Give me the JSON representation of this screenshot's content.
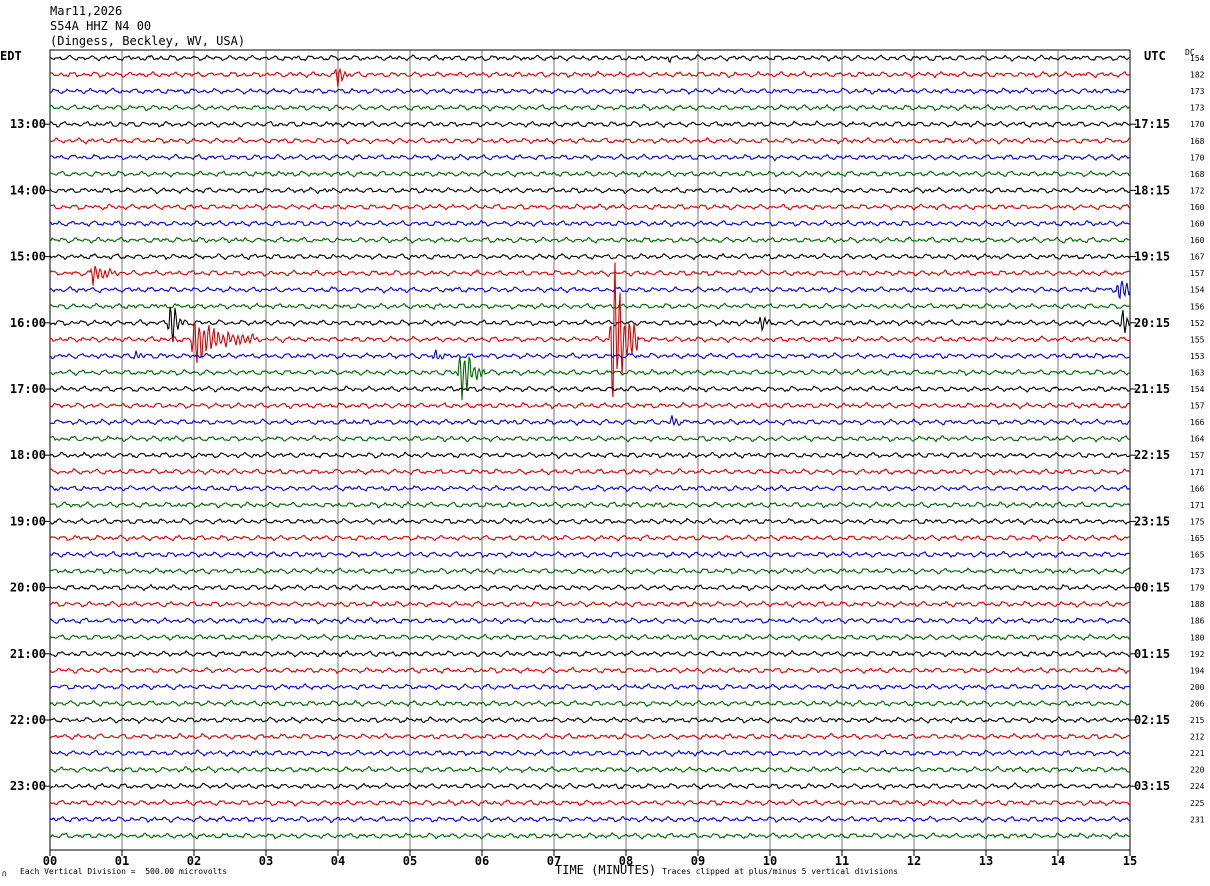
{
  "header": {
    "date": "Mar11,2026",
    "station": "S54A HHZ N4 00",
    "location": "(Dingess, Beckley, WV, USA)"
  },
  "left_label": "EDT",
  "right_label": "UTC",
  "dc_label": "DC",
  "footer": {
    "scale_note": "Each Vertical Division =  500.00 microvolts",
    "xlabel": "TIME (MINUTES)",
    "clip_note": "Traces clipped at plus/minus 5 vertical divisions",
    "corner_mark": "∩"
  },
  "colors": {
    "trace_cycle": [
      "#000000",
      "#dd0000",
      "#0000dd",
      "#006600"
    ],
    "grid": "#000000"
  },
  "chart_data": {
    "type": "line",
    "title": "S54A HHZ N4 00",
    "xlabel": "TIME (MINUTES)",
    "xlim": [
      0,
      15
    ],
    "x_ticks": [
      "00",
      "01",
      "02",
      "03",
      "04",
      "05",
      "06",
      "07",
      "08",
      "09",
      "10",
      "11",
      "12",
      "13",
      "14",
      "15"
    ],
    "trace_count": 48,
    "trace_interval_minutes": 15,
    "left_time_labels": [
      {
        "trace": 4,
        "label": "13:00"
      },
      {
        "trace": 8,
        "label": "14:00"
      },
      {
        "trace": 12,
        "label": "15:00"
      },
      {
        "trace": 16,
        "label": "16:00"
      },
      {
        "trace": 20,
        "label": "17:00"
      },
      {
        "trace": 24,
        "label": "18:00"
      },
      {
        "trace": 28,
        "label": "19:00"
      },
      {
        "trace": 32,
        "label": "20:00"
      },
      {
        "trace": 36,
        "label": "21:00"
      },
      {
        "trace": 40,
        "label": "22:00"
      },
      {
        "trace": 44,
        "label": "23:00"
      }
    ],
    "right_time_labels": [
      {
        "trace": 4,
        "label": "17:15"
      },
      {
        "trace": 8,
        "label": "18:15"
      },
      {
        "trace": 12,
        "label": "19:15"
      },
      {
        "trace": 16,
        "label": "20:15"
      },
      {
        "trace": 20,
        "label": "21:15"
      },
      {
        "trace": 24,
        "label": "22:15"
      },
      {
        "trace": 28,
        "label": "23:15"
      },
      {
        "trace": 32,
        "label": "00:15"
      },
      {
        "trace": 36,
        "label": "01:15"
      },
      {
        "trace": 40,
        "label": "02:15"
      },
      {
        "trace": 44,
        "label": "03:15"
      }
    ],
    "dc_offsets": [
      "154",
      "182",
      "173",
      "173",
      "170",
      "168",
      "170",
      "168",
      "172",
      "160",
      "160",
      "160",
      "167",
      "157",
      "154",
      "156",
      "152",
      "155",
      "153",
      "163",
      "154",
      "157",
      "166",
      "164",
      "157",
      "171",
      "166",
      "171",
      "175",
      "165",
      "165",
      "173",
      "179",
      "188",
      "186",
      "180",
      "192",
      "194",
      "200",
      "206",
      "215",
      "212",
      "221",
      "220",
      "224",
      "225",
      "231"
    ],
    "events": [
      {
        "trace": 0,
        "minute": 8.57,
        "amp": 0.3,
        "dur": 0.2
      },
      {
        "trace": 1,
        "minute": 4.0,
        "amp": 0.9,
        "dur": 0.15
      },
      {
        "trace": 13,
        "minute": 0.6,
        "amp": 0.8,
        "dur": 0.35
      },
      {
        "trace": 14,
        "minute": 14.85,
        "amp": 1.2,
        "dur": 0.3
      },
      {
        "trace": 16,
        "minute": 1.68,
        "amp": 1.8,
        "dur": 0.2
      },
      {
        "trace": 16,
        "minute": 9.88,
        "amp": 0.6,
        "dur": 0.15
      },
      {
        "trace": 16,
        "minute": 14.9,
        "amp": 0.9,
        "dur": 0.15
      },
      {
        "trace": 17,
        "minute": 2.0,
        "amp": 1.6,
        "dur": 0.9
      },
      {
        "trace": 17,
        "minute": 7.82,
        "amp": 6.0,
        "dur": 0.35
      },
      {
        "trace": 18,
        "minute": 1.2,
        "amp": 0.4,
        "dur": 0.15
      },
      {
        "trace": 18,
        "minute": 5.35,
        "amp": 0.4,
        "dur": 0.2
      },
      {
        "trace": 19,
        "minute": 5.7,
        "amp": 2.0,
        "dur": 0.35
      },
      {
        "trace": 22,
        "minute": 8.65,
        "amp": 0.6,
        "dur": 0.15
      }
    ]
  }
}
